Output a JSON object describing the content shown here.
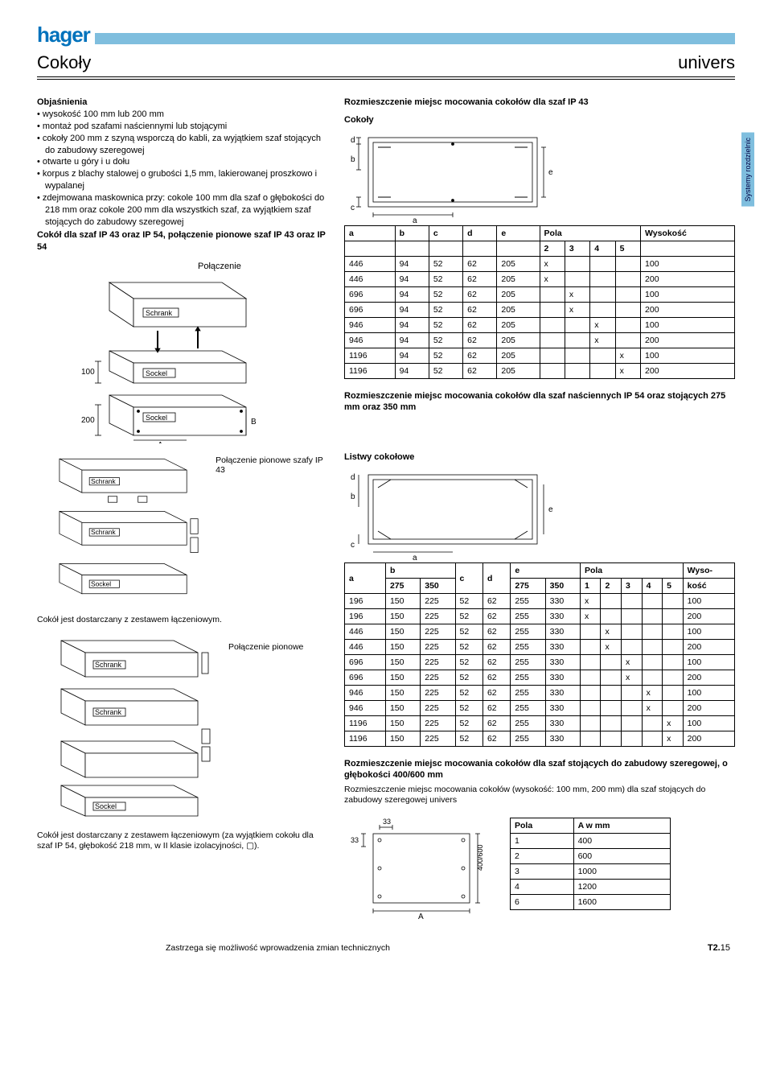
{
  "brand": "hager",
  "page_title_left": "Cokoły",
  "page_title_right": "univers",
  "side_tab": "Systemy rozdzielnic",
  "explanations_head": "Objaśnienia",
  "explanations": [
    "wysokość 100 mm lub 200 mm",
    "montaż pod szafami naściennymi lub stojącymi",
    "cokoły 200 mm z szyną wsporczą do kabli, za wyjątkiem szaf stojących do zabudowy szeregowej",
    "otwarte u góry i u dołu",
    "korpus z blachy stalowej o grubości 1,5 mm, lakierowanej proszkowo i wypalanej",
    "zdejmowana maskownica przy: cokole 100 mm dla szaf o głębokości do 218 mm oraz cokole 200 mm dla wszystkich szaf, za wyjątkiem szaf stojących do zabudowy szeregowej"
  ],
  "subhead1": "Cokół dla szaf IP 43 oraz IP 54, połączenie pionowe szaf IP 43 oraz IP 54",
  "conn_label": "Połączenie",
  "labels_img1": {
    "schrank": "Schrank",
    "sockel": "Sockel",
    "h100": "100",
    "h200": "200",
    "A": "A",
    "B": "B"
  },
  "right_top_head": "Rozmieszczenie miejsc mocowania cokołów dla szaf IP 43",
  "diag_top": {
    "label": "Cokoły",
    "a": "a",
    "b": "b",
    "c": "c",
    "d": "d",
    "e": "e"
  },
  "table1": {
    "head": [
      "a",
      "b",
      "c",
      "d",
      "e",
      "Pola",
      "",
      "",
      "",
      "Wysokość"
    ],
    "subhead": [
      "",
      "",
      "",
      "",
      "",
      "2",
      "3",
      "4",
      "5",
      ""
    ],
    "rows": [
      [
        "446",
        "94",
        "52",
        "62",
        "205",
        "x",
        "",
        "",
        "",
        "100"
      ],
      [
        "446",
        "94",
        "52",
        "62",
        "205",
        "x",
        "",
        "",
        "",
        "200"
      ],
      [
        "696",
        "94",
        "52",
        "62",
        "205",
        "",
        "x",
        "",
        "",
        "100"
      ],
      [
        "696",
        "94",
        "52",
        "62",
        "205",
        "",
        "x",
        "",
        "",
        "200"
      ],
      [
        "946",
        "94",
        "52",
        "62",
        "205",
        "",
        "",
        "x",
        "",
        "100"
      ],
      [
        "946",
        "94",
        "52",
        "62",
        "205",
        "",
        "",
        "x",
        "",
        "200"
      ],
      [
        "1196",
        "94",
        "52",
        "62",
        "205",
        "",
        "",
        "",
        "x",
        "100"
      ],
      [
        "1196",
        "94",
        "52",
        "62",
        "205",
        "",
        "",
        "",
        "x",
        "200"
      ]
    ]
  },
  "right_mid_head": "Rozmieszczenie miejsc mocowania cokołów dla szaf naściennych IP 54 oraz stojących 275 mm oraz 350 mm",
  "mid_label_left": "Połączenie pionowe szafy IP 43",
  "diag_mid": {
    "label": "Listwy cokołowe",
    "a": "a",
    "b": "b",
    "c": "c",
    "d": "d",
    "e": "e"
  },
  "table2": {
    "head_row1": [
      "a",
      "b",
      "",
      "c",
      "d",
      "e",
      "",
      "Pola",
      "",
      "",
      "",
      "",
      "Wyso-"
    ],
    "head_row2": [
      "",
      "275",
      "350",
      "",
      "",
      "275",
      "350",
      "1",
      "2",
      "3",
      "4",
      "5",
      "kość"
    ],
    "rows": [
      [
        "196",
        "150",
        "225",
        "52",
        "62",
        "255",
        "330",
        "x",
        "",
        "",
        "",
        "",
        "100"
      ],
      [
        "196",
        "150",
        "225",
        "52",
        "62",
        "255",
        "330",
        "x",
        "",
        "",
        "",
        "",
        "200"
      ],
      [
        "446",
        "150",
        "225",
        "52",
        "62",
        "255",
        "330",
        "",
        "x",
        "",
        "",
        "",
        "100"
      ],
      [
        "446",
        "150",
        "225",
        "52",
        "62",
        "255",
        "330",
        "",
        "x",
        "",
        "",
        "",
        "200"
      ],
      [
        "696",
        "150",
        "225",
        "52",
        "62",
        "255",
        "330",
        "",
        "",
        "x",
        "",
        "",
        "100"
      ],
      [
        "696",
        "150",
        "225",
        "52",
        "62",
        "255",
        "330",
        "",
        "",
        "x",
        "",
        "",
        "200"
      ],
      [
        "946",
        "150",
        "225",
        "52",
        "62",
        "255",
        "330",
        "",
        "",
        "",
        "x",
        "",
        "100"
      ],
      [
        "946",
        "150",
        "225",
        "52",
        "62",
        "255",
        "330",
        "",
        "",
        "",
        "x",
        "",
        "200"
      ],
      [
        "1196",
        "150",
        "225",
        "52",
        "62",
        "255",
        "330",
        "",
        "",
        "",
        "",
        "x",
        "100"
      ],
      [
        "1196",
        "150",
        "225",
        "52",
        "62",
        "255",
        "330",
        "",
        "",
        "",
        "",
        "x",
        "200"
      ]
    ]
  },
  "left_note1": "Cokół jest dostarczany z zestawem łączeniowym.",
  "conn_pion": "Połączenie pionowe",
  "bottom_head": "Rozmieszczenie miejsc mocowania cokołów dla szaf stojących do zabudowy szeregowej, o głębokości 400/600 mm",
  "bottom_sub": "Rozmieszczenie miejsc mocowania cokołów (wysokość: 100 mm, 200 mm) dla szaf stojących do zabudowy szeregowej univers",
  "left_note2": "Cokół jest dostarczany z zestawem łączeniowym (za wyjątkiem cokołu dla szaf IP 54, głębokość 218 mm, w II klasie izolacyjności, ▢).",
  "diag_bot": {
    "A": "A",
    "d1": "33",
    "d2": "33",
    "side": "400/600"
  },
  "table3": {
    "head": [
      "Pola",
      "A w mm"
    ],
    "rows": [
      [
        "1",
        "400"
      ],
      [
        "2",
        "600"
      ],
      [
        "3",
        "1000"
      ],
      [
        "4",
        "1200"
      ],
      [
        "6",
        "1600"
      ]
    ]
  },
  "footer_left": "Zastrzega się możliwość wprowadzenia zmian technicznych",
  "footer_right_pre": "T2.",
  "footer_right_num": "15"
}
